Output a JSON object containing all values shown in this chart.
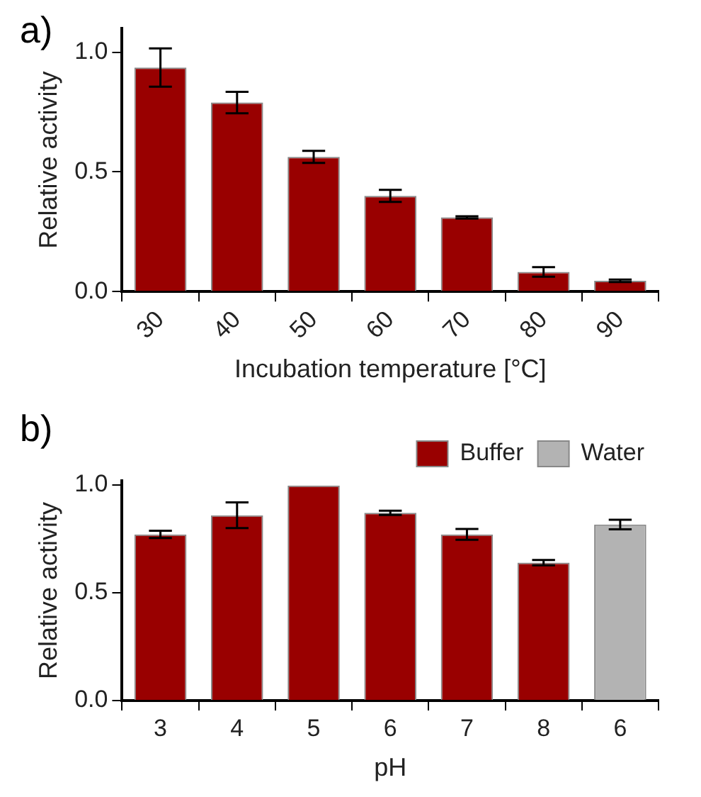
{
  "chart_data": [
    {
      "type": "bar",
      "title": "a)",
      "xlabel": "Incubation temperature [°C]",
      "ylabel": "Relative activity",
      "categories": [
        "30",
        "40",
        "50",
        "60",
        "70",
        "80",
        "90"
      ],
      "series": [
        {
          "color": "#990000",
          "values": [
            0.936,
            0.79,
            0.563,
            0.4,
            0.31,
            0.082,
            0.045
          ],
          "errors": [
            0.08,
            0.045,
            0.025,
            0.025,
            0.005,
            0.02,
            0.005
          ]
        }
      ],
      "ylim": [
        0,
        1.1
      ],
      "yticks": [
        {
          "value": 0,
          "label": "0.0"
        },
        {
          "value": 0.5,
          "label": "0.5"
        },
        {
          "value": 1,
          "label": "1.0"
        }
      ],
      "grid": false,
      "legend": false
    },
    {
      "type": "bar",
      "title": "b)",
      "xlabel": "pH",
      "ylabel": "Relative activity",
      "categories": [
        "3",
        "4",
        "5",
        "6",
        "7",
        "8",
        "6"
      ],
      "series": [
        {
          "name": "Buffer",
          "color": "#990000",
          "values": [
            0.771,
            0.86,
            0.998,
            0.871,
            0.771,
            0.64,
            null
          ],
          "errors": [
            0.017,
            0.06,
            null,
            0.01,
            0.025,
            0.012,
            null
          ]
        },
        {
          "name": "Water",
          "color": "#b3b3b3",
          "values": [
            null,
            null,
            null,
            null,
            null,
            null,
            0.817
          ],
          "errors": [
            null,
            null,
            null,
            null,
            null,
            null,
            0.022
          ]
        }
      ],
      "ylim": [
        0,
        1.02
      ],
      "yticks": [
        {
          "value": 0,
          "label": "0.0"
        },
        {
          "value": 0.5,
          "label": "0.5"
        },
        {
          "value": 1,
          "label": "1.0"
        }
      ],
      "grid": false,
      "legend": "top right"
    }
  ]
}
